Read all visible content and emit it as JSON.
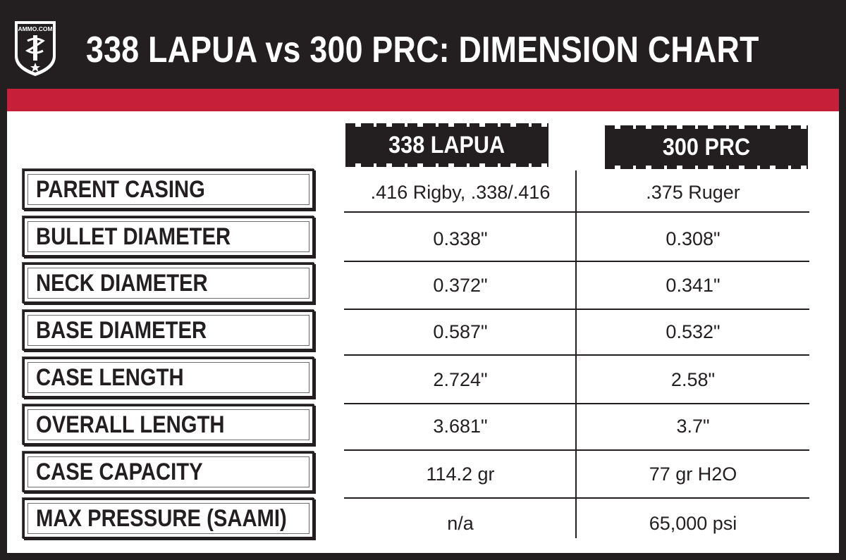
{
  "header": {
    "title": "338 LAPUA vs 300 PRC: DIMENSION CHART",
    "logo_text": "AMMO.COM",
    "logo_icon": "shield-logo-icon"
  },
  "colors": {
    "background": "#231f20",
    "accent_red": "#c51f3a",
    "panel": "#ffffff"
  },
  "chart_data": {
    "type": "table",
    "columns": [
      "338 LAPUA",
      "300 PRC"
    ],
    "rows": [
      {
        "label": "PARENT CASING",
        "values": [
          ".416 Rigby, .338/.416",
          ".375 Ruger"
        ]
      },
      {
        "label": "BULLET DIAMETER",
        "values": [
          "0.338\"",
          "0.308\""
        ]
      },
      {
        "label": "NECK DIAMETER",
        "values": [
          "0.372\"",
          "0.341\""
        ]
      },
      {
        "label": "BASE DIAMETER",
        "values": [
          "0.587\"",
          "0.532\""
        ]
      },
      {
        "label": "CASE LENGTH",
        "values": [
          "2.724\"",
          "2.58\""
        ]
      },
      {
        "label": "OVERALL LENGTH",
        "values": [
          "3.681\"",
          "3.7\""
        ]
      },
      {
        "label": "CASE CAPACITY",
        "values": [
          "114.2 gr",
          "77 gr H2O"
        ]
      },
      {
        "label": "MAX PRESSURE (SAAMI)",
        "values": [
          "n/a",
          "65,000 psi"
        ]
      }
    ]
  }
}
